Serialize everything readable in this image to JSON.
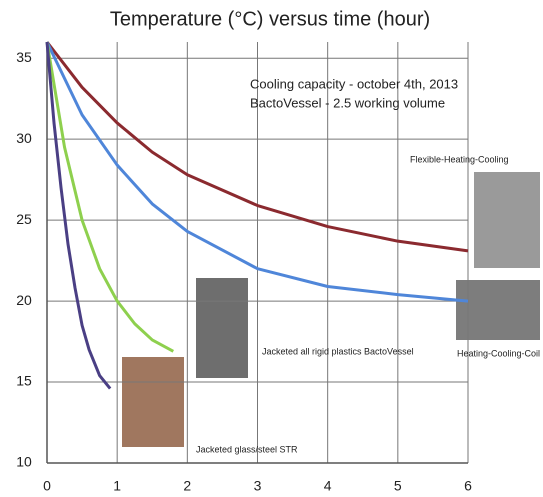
{
  "chart_data": {
    "type": "line",
    "title": "Temperature (°C) versus time (hour)",
    "xlim": [
      0,
      6
    ],
    "xticks": [
      0,
      1,
      2,
      3,
      4,
      5,
      6
    ],
    "ylim": [
      10,
      36
    ],
    "yticks": [
      10,
      15,
      20,
      25,
      30,
      35
    ],
    "grid": true,
    "series": [
      {
        "name": "Flexible-Heating-Cooling",
        "color": "#8b2a2f",
        "x": [
          0,
          0.5,
          1,
          1.5,
          2,
          3,
          4,
          5,
          6
        ],
        "values": [
          36,
          33.2,
          31,
          29.2,
          27.8,
          25.9,
          24.6,
          23.7,
          23.1
        ]
      },
      {
        "name": "Heating-Cooling-Coil",
        "color": "#4f86d9",
        "x": [
          0,
          0.5,
          1,
          1.5,
          2,
          3,
          4,
          5,
          6
        ],
        "values": [
          36,
          31.5,
          28.4,
          26,
          24.3,
          22,
          20.9,
          20.4,
          20
        ]
      },
      {
        "name": "Jacketed all rigid plastics BactoVessel",
        "color": "#8ed04e",
        "x": [
          0,
          0.25,
          0.5,
          0.75,
          1,
          1.25,
          1.5,
          1.8
        ],
        "values": [
          36,
          29.5,
          25,
          22,
          20,
          18.6,
          17.6,
          16.9
        ]
      },
      {
        "name": "Jacketed glass/steel STR",
        "color": "#4a3f84",
        "x": [
          0,
          0.1,
          0.2,
          0.3,
          0.4,
          0.5,
          0.6,
          0.75,
          0.9
        ],
        "values": [
          36,
          31,
          27,
          23.5,
          20.8,
          18.5,
          17,
          15.4,
          14.6
        ]
      }
    ],
    "annotations": [
      "Cooling capacity - october 4th, 2013",
      "BactoVessel - 2.5 working volume"
    ]
  }
}
